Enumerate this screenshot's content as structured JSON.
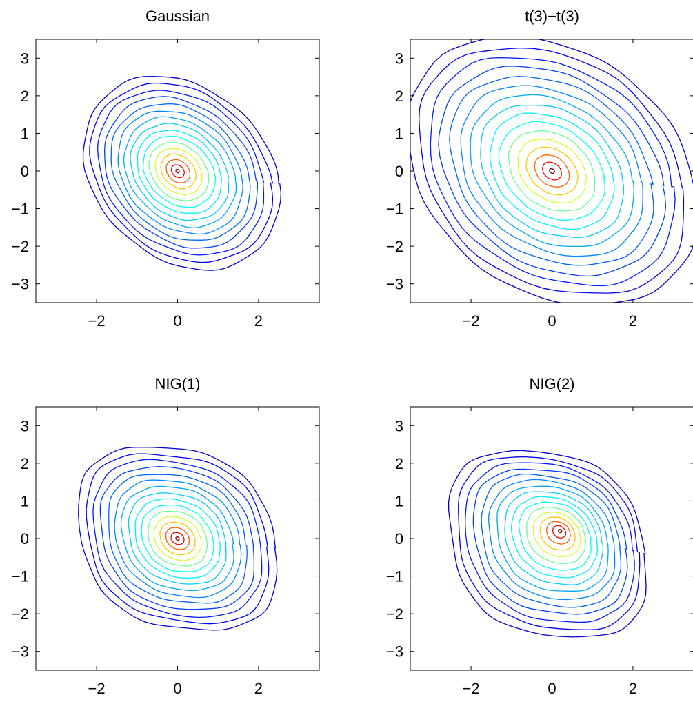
{
  "figure": {
    "layout": "2x2 grid of contour plots"
  },
  "chart_data": [
    {
      "type": "contour",
      "title": "Gaussian",
      "xlim": [
        -3.5,
        3.5
      ],
      "ylim": [
        -3.5,
        3.5
      ],
      "xticks": [
        -2,
        0,
        2
      ],
      "yticks": [
        -3,
        -2,
        -1,
        0,
        1,
        2,
        3
      ],
      "xtick_labels": [
        "−2",
        "0",
        "2"
      ],
      "ytick_labels": [
        "−3",
        "−2",
        "−1",
        "0",
        "1",
        "2",
        "3"
      ],
      "center": [
        0,
        0
      ],
      "levels": 16,
      "outer_contour": {
        "x_range": [
          -2.3,
          2.5
        ],
        "y_range": [
          -2.6,
          2.5
        ]
      },
      "correlation": 0.35,
      "colormap": "jet",
      "grid": false
    },
    {
      "type": "contour",
      "title": "t(3)−t(3)",
      "xlim": [
        -3.5,
        3.5
      ],
      "ylim": [
        -3.5,
        3.5
      ],
      "xticks": [
        -2,
        0,
        2
      ],
      "yticks": [
        -3,
        -2,
        -1,
        0,
        1,
        2,
        3
      ],
      "xtick_labels": [
        "−2",
        "0",
        "2"
      ],
      "ytick_labels": [
        "−3",
        "−2",
        "−1",
        "0",
        "1",
        "2",
        "3"
      ],
      "center": [
        0,
        0
      ],
      "levels": 16,
      "outer_contour": {
        "x_range": [
          -3.5,
          3.5
        ],
        "y_range": [
          -3.5,
          3.5
        ]
      },
      "correlation": 0.4,
      "colormap": "jet",
      "grid": false
    },
    {
      "type": "contour",
      "title": "NIG(1)",
      "xlim": [
        -3.5,
        3.5
      ],
      "ylim": [
        -3.5,
        3.5
      ],
      "xticks": [
        -2,
        0,
        2
      ],
      "yticks": [
        -3,
        -2,
        -1,
        0,
        1,
        2,
        3
      ],
      "xtick_labels": [
        "−2",
        "0",
        "2"
      ],
      "ytick_labels": [
        "−3",
        "−2",
        "−1",
        "0",
        "1",
        "2",
        "3"
      ],
      "center": [
        0,
        0
      ],
      "levels": 16,
      "outer_contour": {
        "x_range": [
          -2.4,
          2.4
        ],
        "y_range": [
          -2.4,
          2.4
        ]
      },
      "correlation": 0.3,
      "colormap": "jet",
      "grid": false
    },
    {
      "type": "contour",
      "title": "NIG(2)",
      "xlim": [
        -3.5,
        3.5
      ],
      "ylim": [
        -3.5,
        3.5
      ],
      "xticks": [
        -2,
        0,
        2
      ],
      "yticks": [
        -3,
        -2,
        -1,
        0,
        1,
        2,
        3
      ],
      "xtick_labels": [
        "−2",
        "0",
        "2"
      ],
      "ytick_labels": [
        "−3",
        "−2",
        "−1",
        "0",
        "1",
        "2",
        "3"
      ],
      "center": [
        0.2,
        0.2
      ],
      "levels": 16,
      "outer_contour": {
        "x_range": [
          -2.5,
          2.3
        ],
        "y_range": [
          -2.6,
          2.3
        ]
      },
      "correlation": 0.3,
      "colormap": "jet",
      "grid": false
    }
  ]
}
